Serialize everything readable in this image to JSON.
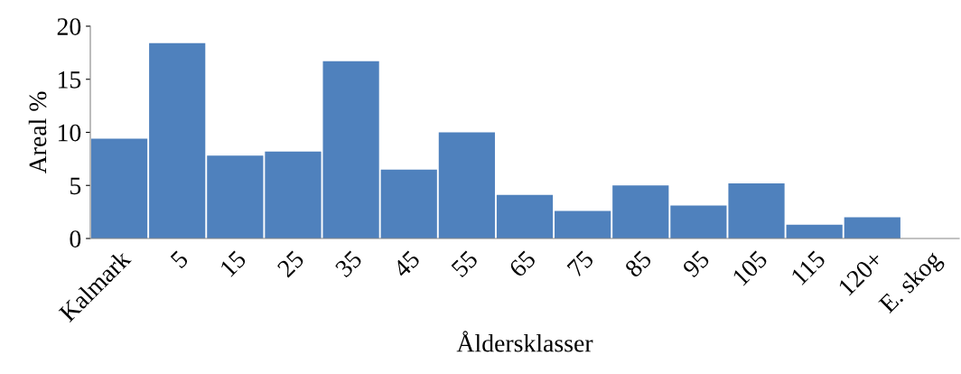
{
  "chart_data": {
    "type": "bar",
    "xlabel": "Åldersklasser",
    "ylabel": "Areal %",
    "categories": [
      "Kalmark",
      "5",
      "15",
      "25",
      "35",
      "45",
      "55",
      "65",
      "75",
      "85",
      "95",
      "105",
      "115",
      "120+",
      "E. skog"
    ],
    "values": [
      9.4,
      18.4,
      7.8,
      8.2,
      16.7,
      6.5,
      10.0,
      4.1,
      2.6,
      5.0,
      3.1,
      5.2,
      1.3,
      2.0,
      0
    ],
    "color": "#4f81bd",
    "ylim": [
      0,
      20
    ],
    "yticks": [
      0,
      5,
      10,
      15,
      20
    ],
    "grid": false,
    "legend": false
  }
}
